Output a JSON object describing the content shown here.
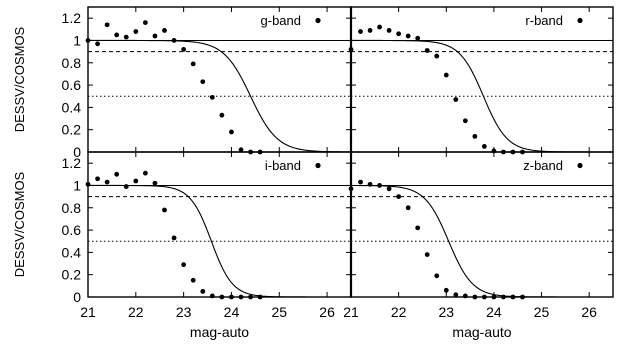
{
  "chart_data": [
    {
      "type": "scatter",
      "legend": "g-band",
      "ylabel": "DESSV/COSMOS",
      "xlim": [
        21,
        26.5
      ],
      "ylim": [
        0,
        1.3
      ],
      "xticks": [
        21,
        22,
        23,
        24,
        25,
        26
      ],
      "yticks": [
        0,
        0.2,
        0.4,
        0.6,
        0.8,
        1,
        1.2
      ],
      "ytick_labels": [
        "0",
        "0.2",
        "0.4",
        "0.6",
        "0.8",
        "1",
        "1.2"
      ],
      "reference_lines": [
        1.0,
        0.9,
        0.5
      ],
      "fit": {
        "m50": 24.4,
        "width": 0.28
      },
      "points": {
        "x": [
          21.0,
          21.2,
          21.4,
          21.6,
          21.8,
          22.0,
          22.2,
          22.4,
          22.6,
          22.8,
          23.0,
          23.2,
          23.4,
          23.6,
          23.8,
          24.0,
          24.2,
          24.4,
          24.6
        ],
        "y": [
          1.0,
          0.97,
          1.14,
          1.05,
          1.03,
          1.08,
          1.16,
          1.04,
          1.09,
          1.0,
          0.92,
          0.79,
          0.63,
          0.49,
          0.33,
          0.18,
          0.02,
          0.0,
          0.0
        ]
      }
    },
    {
      "type": "scatter",
      "legend": "r-band",
      "xlim": [
        21,
        26.5
      ],
      "ylim": [
        0,
        1.3
      ],
      "reference_lines": [
        1.0,
        0.9,
        0.5
      ],
      "fit": {
        "m50": 23.78,
        "width": 0.25
      },
      "points": {
        "x": [
          21.0,
          21.2,
          21.4,
          21.6,
          21.8,
          22.0,
          22.2,
          22.4,
          22.6,
          22.8,
          23.0,
          23.2,
          23.4,
          23.6,
          23.8,
          24.0,
          24.2,
          24.4,
          24.6
        ],
        "y": [
          0.92,
          1.08,
          1.09,
          1.12,
          1.09,
          1.06,
          1.04,
          1.02,
          0.91,
          0.86,
          0.69,
          0.47,
          0.28,
          0.14,
          0.05,
          0.01,
          0.0,
          0.0,
          0.0
        ]
      }
    },
    {
      "type": "scatter",
      "legend": "i-band",
      "xlabel": "mag-auto",
      "ylabel": "DESSV/COSMOS",
      "xlim": [
        21,
        26.5
      ],
      "ylim": [
        0,
        1.3
      ],
      "xticks": [
        21,
        22,
        23,
        24,
        25,
        26
      ],
      "xtick_labels": [
        "21",
        "22",
        "23",
        "24",
        "25",
        "26"
      ],
      "yticks": [
        0,
        0.2,
        0.4,
        0.6,
        0.8,
        1,
        1.2
      ],
      "ytick_labels": [
        "0",
        "0.2",
        "0.4",
        "0.6",
        "0.8",
        "1",
        "1.2"
      ],
      "reference_lines": [
        1.0,
        0.9,
        0.5
      ],
      "fit": {
        "m50": 23.58,
        "width": 0.22
      },
      "points": {
        "x": [
          21.0,
          21.2,
          21.4,
          21.6,
          21.8,
          22.0,
          22.2,
          22.4,
          22.6,
          22.8,
          23.0,
          23.2,
          23.4,
          23.6,
          23.8,
          24.0,
          24.2,
          24.4,
          24.6
        ],
        "y": [
          1.01,
          1.06,
          1.03,
          1.1,
          0.99,
          1.04,
          1.11,
          1.02,
          0.78,
          0.53,
          0.29,
          0.15,
          0.05,
          0.01,
          0.0,
          0.0,
          0.0,
          0.0,
          0.0
        ]
      }
    },
    {
      "type": "scatter",
      "legend": "z-band",
      "xlabel": "mag-auto",
      "xlim": [
        21,
        26.5
      ],
      "ylim": [
        0,
        1.3
      ],
      "xticks": [
        21,
        22,
        23,
        24,
        25,
        26
      ],
      "xtick_labels": [
        "21",
        "22",
        "23",
        "24",
        "25",
        "26"
      ],
      "reference_lines": [
        1.0,
        0.9,
        0.5
      ],
      "fit": {
        "m50": 23.05,
        "width": 0.25
      },
      "points": {
        "x": [
          21.0,
          21.2,
          21.4,
          21.6,
          21.8,
          22.0,
          22.2,
          22.4,
          22.6,
          22.8,
          23.0,
          23.2,
          23.4,
          23.6,
          23.8,
          24.0,
          24.2,
          24.4,
          24.6
        ],
        "y": [
          0.97,
          1.03,
          1.01,
          1.0,
          0.97,
          0.9,
          0.8,
          0.62,
          0.38,
          0.19,
          0.06,
          0.02,
          0.01,
          0.0,
          0.0,
          0.0,
          0.0,
          0.0,
          0.0
        ]
      }
    }
  ]
}
